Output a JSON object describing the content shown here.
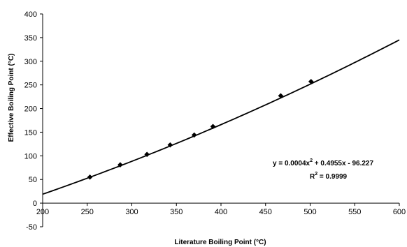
{
  "chart_data": {
    "type": "scatter",
    "xlabel": "Literature Boiling Point (°C)",
    "ylabel": "Effective Boiling Point (°C)",
    "xlim": [
      200,
      600
    ],
    "ylim": [
      -50,
      400
    ],
    "x_ticks": [
      200,
      250,
      300,
      350,
      400,
      450,
      500,
      550,
      600
    ],
    "y_ticks": [
      -50,
      0,
      50,
      100,
      150,
      200,
      250,
      300,
      350,
      400
    ],
    "grid": false,
    "series": [
      {
        "marker": "diamond",
        "points": [
          {
            "x": 253,
            "y": 55
          },
          {
            "x": 287,
            "y": 81
          },
          {
            "x": 317,
            "y": 103
          },
          {
            "x": 343,
            "y": 123
          },
          {
            "x": 370,
            "y": 144
          },
          {
            "x": 391,
            "y": 162
          },
          {
            "x": 467,
            "y": 227
          },
          {
            "x": 501,
            "y": 257
          }
        ]
      }
    ],
    "trendline": {
      "type": "polynomial",
      "coefficients": {
        "a": 0.0004,
        "b": 0.4955,
        "c": -96.227
      },
      "x_range": [
        200,
        600
      ],
      "equation_prefix": "y = 0.0004x",
      "equation_sup": "2",
      "equation_suffix": " + 0.4955x - 96.227",
      "r2_prefix": "R",
      "r2_sup": "2",
      "r2_suffix": " = 0.9999"
    }
  }
}
